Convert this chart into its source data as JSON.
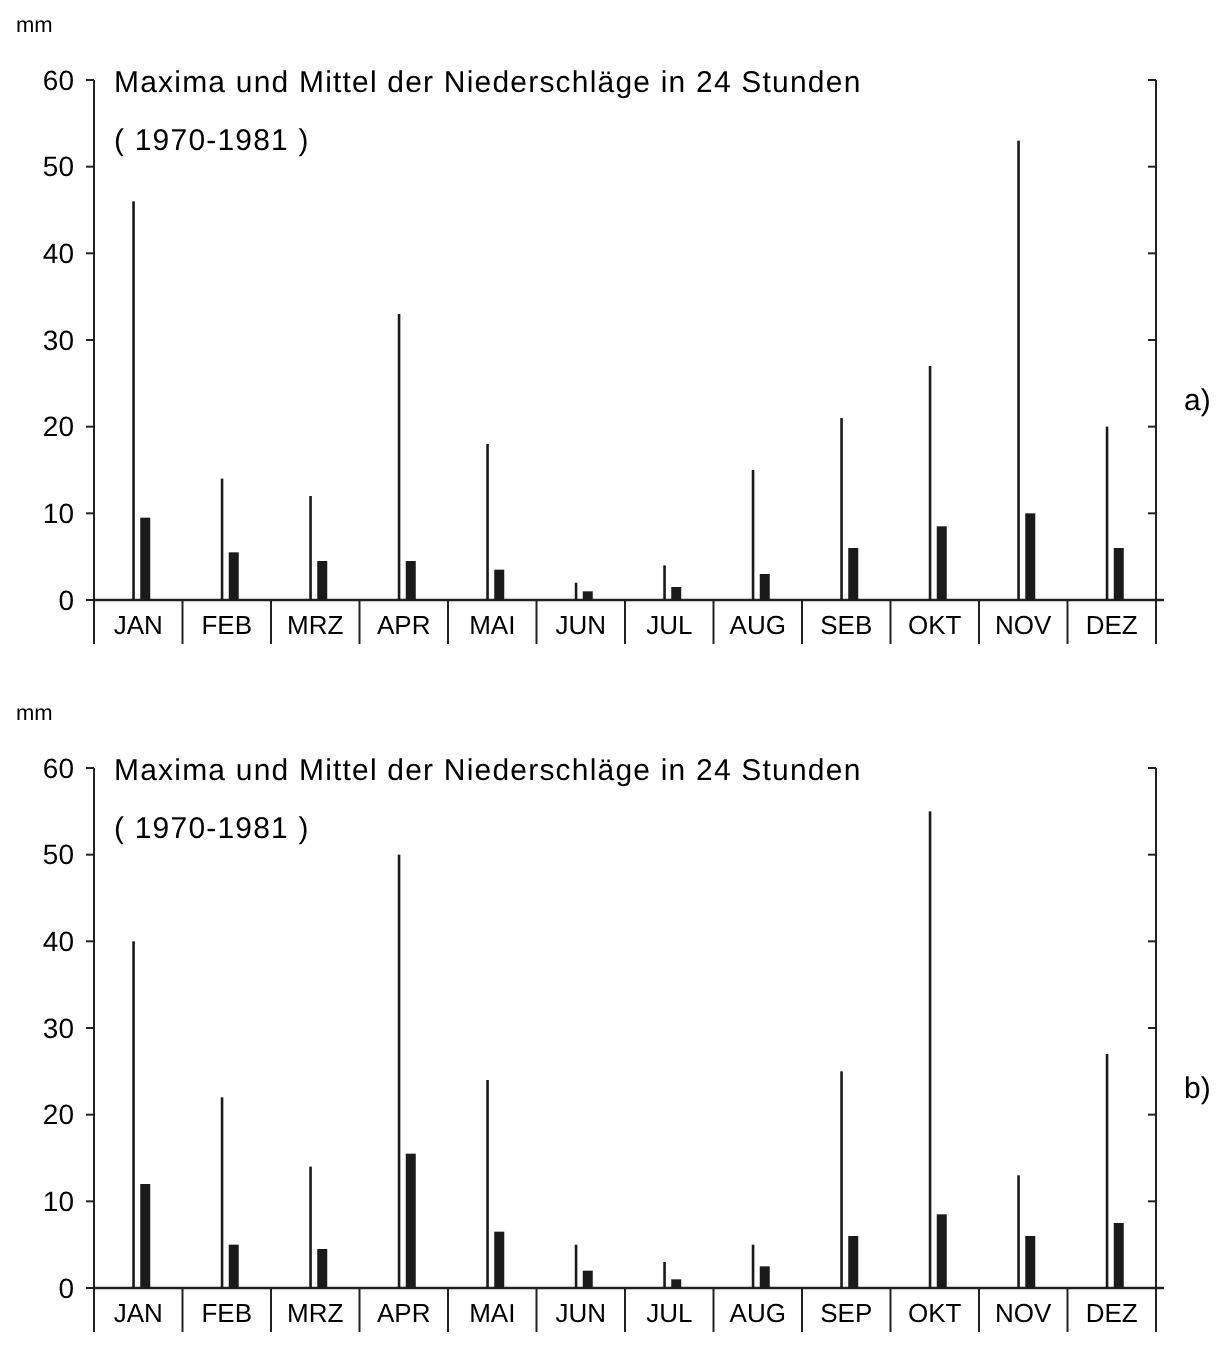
{
  "chart_data": [
    {
      "type": "bar",
      "title": "Maxima und Mittel der Niederschläge in 24 Stunden",
      "subtitle": "( 1970-1981 )",
      "ylabel": "mm",
      "annotations": [
        "a)"
      ],
      "categories": [
        "JAN",
        "FEB",
        "MRZ",
        "APR",
        "MAI",
        "JUN",
        "JUL",
        "AUG",
        "SEB",
        "OKT",
        "NOV",
        "DEZ"
      ],
      "series": [
        {
          "color": "#1a1a1a",
          "values": [
            46,
            14,
            12,
            33,
            18,
            2,
            4,
            15,
            21,
            27,
            53,
            20
          ]
        },
        {
          "color": "#1a1a1a",
          "values": [
            9.5,
            5.5,
            4.5,
            4.5,
            3.5,
            1,
            1.5,
            3,
            6,
            8.5,
            10,
            6
          ]
        }
      ],
      "ylim": [
        0,
        60
      ],
      "yticks": [
        0,
        10,
        20,
        30,
        40,
        50,
        60
      ],
      "grid": false
    },
    {
      "type": "bar",
      "title": "Maxima und Mittel der Niederschläge in 24 Stunden",
      "subtitle": "( 1970-1981 )",
      "ylabel": "mm",
      "annotations": [
        "b)"
      ],
      "categories": [
        "JAN",
        "FEB",
        "MRZ",
        "APR",
        "MAI",
        "JUN",
        "JUL",
        "AUG",
        "SEP",
        "OKT",
        "NOV",
        "DEZ"
      ],
      "series": [
        {
          "color": "#1a1a1a",
          "values": [
            40,
            22,
            14,
            50,
            24,
            5,
            3,
            5,
            25,
            55,
            13,
            27
          ]
        },
        {
          "color": "#1a1a1a",
          "values": [
            12,
            5,
            4.5,
            15.5,
            6.5,
            2,
            1,
            2.5,
            6,
            8.5,
            6,
            7.5
          ]
        }
      ],
      "ylim": [
        0,
        60
      ],
      "yticks": [
        0,
        10,
        20,
        30,
        40,
        50,
        60
      ],
      "grid": false
    }
  ]
}
